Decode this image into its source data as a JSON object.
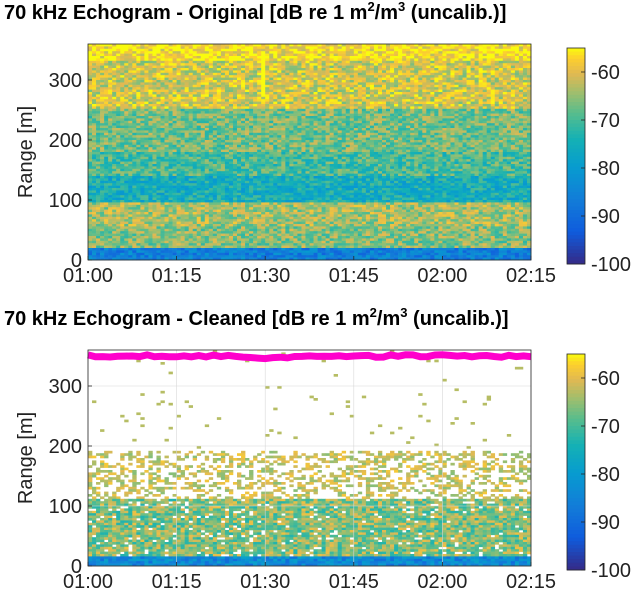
{
  "chart_data": [
    {
      "type": "heatmap",
      "title_prefix": "70 kHz Echogram - Original [dB re 1 m",
      "title_sup1": "2",
      "title_mid": "/m",
      "title_sup2": "3",
      "title_suffix": " (uncalib.)]",
      "ylabel": "Range [m]",
      "xlabel": "",
      "x_ticks": [
        "01:00",
        "01:15",
        "01:30",
        "01:45",
        "02:00",
        "02:15"
      ],
      "y_ticks": [
        "0",
        "100",
        "200",
        "300"
      ],
      "ylim": [
        0,
        360
      ],
      "colorbar_ticks": [
        "-60",
        "-70",
        "-80",
        "-90",
        "-100"
      ],
      "clim": [
        -100,
        -55
      ],
      "colormap": "parula",
      "grid": false,
      "description_values": {
        "near_surface_band_dB": -56,
        "scattering_layer_center_m": 115
      }
    },
    {
      "type": "heatmap",
      "title_prefix": "70 kHz Echogram - Cleaned [dB re 1 m",
      "title_sup1": "2",
      "title_mid": "/m",
      "title_sup2": "3",
      "title_suffix": " (uncalib.)]",
      "ylabel": "Range [m]",
      "xlabel": "",
      "x_ticks": [
        "01:00",
        "01:15",
        "01:30",
        "01:45",
        "02:00",
        "02:15"
      ],
      "y_ticks": [
        "0",
        "100",
        "200",
        "300"
      ],
      "ylim": [
        0,
        360
      ],
      "colorbar_ticks": [
        "-60",
        "-70",
        "-80",
        "-90",
        "-100"
      ],
      "clim": [
        -100,
        -55
      ],
      "colormap": "parula",
      "grid": true,
      "surface_line_color": "#ff00cc"
    }
  ]
}
